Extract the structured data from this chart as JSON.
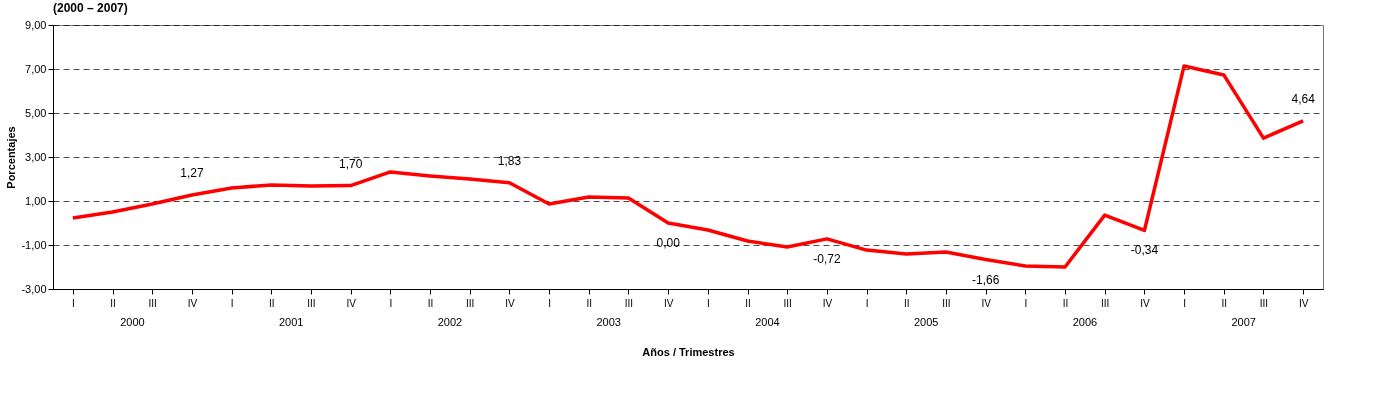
{
  "chart_data": {
    "type": "line",
    "title": "(2000 – 2007)",
    "xlabel": "Años / Trimestres",
    "ylabel": "Porcentajes",
    "categories": [
      "I",
      "II",
      "III",
      "IV",
      "I",
      "II",
      "III",
      "IV",
      "I",
      "II",
      "III",
      "IV",
      "I",
      "II",
      "III",
      "IV",
      "I",
      "II",
      "III",
      "IV",
      "I",
      "II",
      "III",
      "IV",
      "I",
      "II",
      "III",
      "IV",
      "I",
      "II",
      "III",
      "IV"
    ],
    "series": [
      {
        "color": "#ff0000",
        "values": [
          0.23,
          0.5,
          0.86,
          1.27,
          1.59,
          1.73,
          1.68,
          1.7,
          2.32,
          2.14,
          2.0,
          1.83,
          0.86,
          1.18,
          1.14,
          0.0,
          -0.32,
          -0.82,
          -1.09,
          -0.72,
          -1.23,
          -1.41,
          -1.32,
          -1.66,
          -1.95,
          -2.0,
          0.36,
          -0.34,
          7.14,
          6.73,
          3.86,
          4.64
        ],
        "value_labels": [
          null,
          null,
          null,
          "1,27",
          null,
          null,
          null,
          "1,70",
          null,
          null,
          null,
          "1,83",
          null,
          null,
          null,
          "0,00",
          null,
          null,
          null,
          "-0,72",
          null,
          null,
          null,
          "-1,66",
          null,
          null,
          null,
          "-0,34",
          null,
          null,
          null,
          "4,64"
        ]
      }
    ],
    "annotations": [
      "2000",
      "2001",
      "2002",
      "2003",
      "2004",
      "2005",
      "2006",
      "2007"
    ],
    "ylim": [
      -3,
      9
    ],
    "yticks": [
      {
        "value": -3,
        "label": "-3,00"
      },
      {
        "value": -1,
        "label": "-1,00"
      },
      {
        "value": 1,
        "label": "1,00"
      },
      {
        "value": 3,
        "label": "3,00"
      },
      {
        "value": 5,
        "label": "5,00"
      },
      {
        "value": 7,
        "label": "7,00"
      },
      {
        "value": 9,
        "label": "9,00"
      }
    ],
    "grid": "y",
    "line_style": "solid",
    "marker": "none"
  }
}
